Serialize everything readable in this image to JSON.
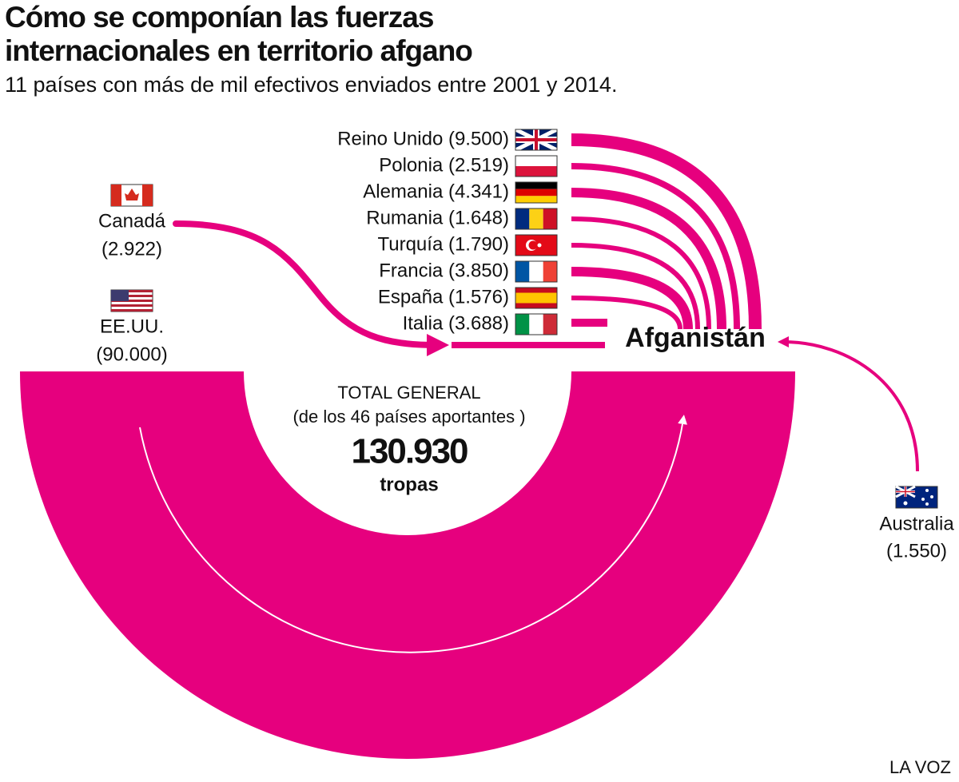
{
  "header": {
    "title": [
      "Cómo se componían las fuerzas",
      "internacionales en territorio afgano"
    ],
    "subtitle": "11 países con más de mil efectivos enviados entre 2001 y 2014."
  },
  "countries": [
    "Reino Unido (9.500)",
    "Polonia (2.519)",
    "Alemania (4.341)",
    "Rumania (1.648)",
    "Turquía (1.790)",
    "Francia (3.850)",
    "España (1.576)",
    "Italia (3.688)"
  ],
  "canada": [
    "Canadá",
    "(2.922)"
  ],
  "usa": [
    "EE.UU.",
    "(90.000)"
  ],
  "australia": [
    "Australia",
    "(1.550)"
  ],
  "hub": "Afganistán",
  "total": {
    "label": "TOTAL GENERAL",
    "note": "(de los 46 países aportantes )",
    "number": "130.930",
    "unit": "tropas"
  },
  "source": "LA VOZ"
}
